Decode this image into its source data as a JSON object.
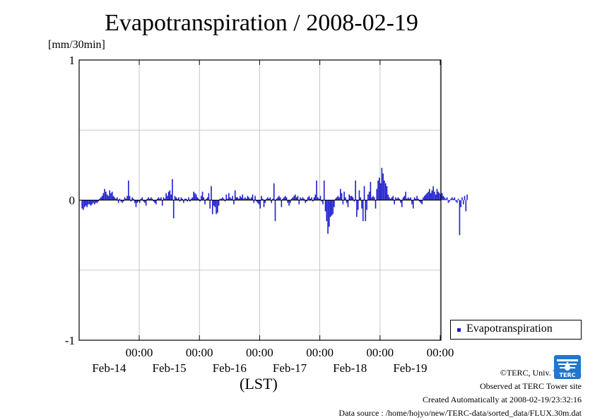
{
  "chart_data": {
    "type": "bar",
    "title": "Evapotranspiration / 2008-02-19",
    "ylabel": "[mm/30min]",
    "xlabel": "(LST)",
    "ylim": [
      -1,
      1
    ],
    "yticks": [
      "1",
      "0",
      "-1"
    ],
    "xticks": [
      {
        "time": "00:00",
        "date": "Feb-14"
      },
      {
        "time": "00:00",
        "date": "Feb-15"
      },
      {
        "time": "00:00",
        "date": "Feb-16"
      },
      {
        "time": "00:00",
        "date": "Feb-17"
      },
      {
        "time": "00:00",
        "date": "Feb-18"
      },
      {
        "time": "00:00",
        "date": "Feb-19"
      }
    ],
    "grid": true,
    "legend": "right",
    "series": [
      {
        "name": "Evapotranspiration",
        "color": "#1a1acc",
        "start": "2008-02-13 01:00",
        "interval_minutes": 30,
        "values": [
          -0.06,
          -0.07,
          -0.05,
          -0.04,
          -0.05,
          -0.03,
          -0.03,
          -0.04,
          -0.03,
          -0.02,
          -0.03,
          -0.02,
          -0.02,
          -0.01,
          0.01,
          0.02,
          0.03,
          0.05,
          0.08,
          0.06,
          0.04,
          0.03,
          0.07,
          0.05,
          0.06,
          0.03,
          0.02,
          0.01,
          0.02,
          -0.02,
          0.01,
          -0.01,
          -0.02,
          -0.01,
          0.02,
          0.01,
          0.03,
          0.14,
          0.03,
          -0.01,
          0.02,
          0.01,
          -0.02,
          -0.05,
          -0.02,
          -0.01,
          -0.02,
          0.01,
          0.02,
          -0.01,
          -0.02,
          -0.04,
          0.01,
          0.02,
          0.01,
          0.02,
          0.01,
          -0.01,
          -0.02,
          -0.03,
          0.01,
          0.02,
          0.01,
          0.02,
          -0.04,
          0.02,
          0.01,
          0.05,
          0.03,
          0.06,
          0.07,
          0.04,
          0.15,
          -0.13,
          0.03,
          0.02,
          0.01,
          0.02,
          -0.01,
          0.02,
          0.01,
          -0.02,
          0.01,
          0.01,
          -0.01,
          0.02,
          -0.01,
          0.01,
          0.02,
          0.06,
          0.05,
          0.04,
          0.02,
          0.01,
          -0.01,
          0.03,
          0.06,
          0.02,
          -0.03,
          0.01,
          0.02,
          0.05,
          -0.06,
          0.1,
          -0.1,
          -0.04,
          -0.05,
          -0.1,
          -0.09,
          -0.04,
          0.01,
          0.01,
          0.02,
          0.01,
          -0.01,
          0.04,
          0.01,
          0.05,
          0.02,
          0.01,
          0.03,
          -0.03,
          0.07,
          0.02,
          0.02,
          0.01,
          0.03,
          0.02,
          0.04,
          0.01,
          0.02,
          0.01,
          0.03,
          0.02,
          0.01,
          0.02,
          0.04,
          -0.02,
          0.03,
          -0.01,
          -0.02,
          -0.03,
          -0.06,
          0.03,
          0.01,
          -0.05,
          -0.02,
          0.01,
          0.02,
          0.01,
          0.02,
          -0.02,
          0.01,
          0.12,
          -0.15,
          0.01,
          0.02,
          0.03,
          0.02,
          -0.05,
          0.01,
          0.02,
          0.03,
          0.02,
          -0.02,
          -0.04,
          -0.02,
          0.01,
          0.02,
          0.03,
          0.04,
          0.02,
          0.03,
          -0.03,
          0.02,
          0.01,
          0.02,
          0.01,
          -0.02,
          -0.01,
          0.02,
          0.03,
          0.01,
          0.02,
          -0.01,
          0.02,
          0.04,
          0.14,
          0.02,
          0.01,
          0.03,
          -0.01,
          -0.03,
          0.14,
          -0.08,
          -0.15,
          -0.24,
          -0.19,
          -0.12,
          -0.11,
          -0.1,
          -0.05,
          0.01,
          0.02,
          0.03,
          0.02,
          0.08,
          0.05,
          -0.03,
          0.06,
          0.02,
          -0.02,
          -0.05,
          0.04,
          0.03,
          0.03,
          0.02,
          -0.01,
          0.14,
          -0.12,
          -0.07,
          0.07,
          0.02,
          -0.06,
          -0.15,
          0.1,
          -0.15,
          -0.07,
          0.04,
          0.06,
          0.13,
          0.02,
          0.03,
          0.02,
          -0.06,
          0.08,
          0.14,
          0.16,
          0.12,
          0.23,
          0.19,
          0.14,
          0.12,
          0.1,
          0.04,
          0.02,
          0.01,
          0.02,
          0.03,
          -0.03,
          0.02,
          0.01,
          0.02,
          0.01,
          -0.02,
          -0.05,
          0.02,
          0.03,
          0.06,
          0.01,
          0.02,
          0.01,
          0.02,
          -0.03,
          -0.06,
          0.02,
          0.01,
          0.03,
          0.01,
          -0.01,
          -0.02,
          -0.03,
          0.02,
          0.03,
          0.04,
          0.05,
          0.06,
          0.08,
          0.05,
          0.07,
          0.1,
          0.06,
          0.04,
          0.08,
          0.06,
          0.05,
          0.04,
          0.05,
          0.03,
          0.02,
          0.01,
          0.02,
          -0.02,
          -0.01,
          0.01,
          0.02,
          0.01,
          0.02,
          -0.01,
          -0.02,
          0.01,
          -0.25,
          -0.05,
          0.02,
          -0.03,
          0.03,
          -0.08,
          0.04
        ]
      }
    ]
  },
  "legend_label": "Evapotranspiration",
  "credits": [
    "©TERC, Univ. Tsukuba",
    "Observed at TERC Tower site",
    "Created Automatically at 2008-02-19/23:32:16",
    "Data source : /home/hojyo/new/TERC-data/sorted_data/FLUX.30m.dat"
  ],
  "logo_text": "TERC",
  "logo_color": "#2277cc"
}
